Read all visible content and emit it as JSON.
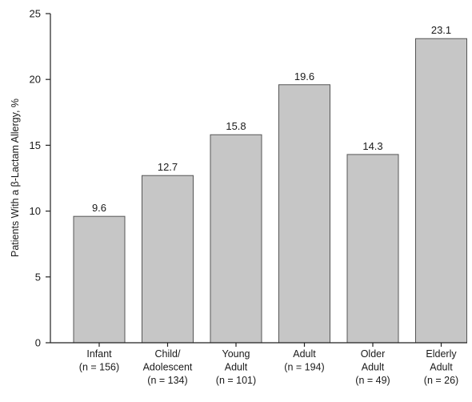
{
  "chart_data": {
    "type": "bar",
    "title": "",
    "xlabel": "",
    "ylabel": "Patients With a β-Lactam Allergy, %",
    "ylim": [
      0,
      25
    ],
    "yticks": [
      0,
      5,
      10,
      15,
      20,
      25
    ],
    "grid": false,
    "categories": [
      [
        "Infant",
        "(n = 156)"
      ],
      [
        "Child/",
        "Adolescent",
        "(n = 134)"
      ],
      [
        "Young",
        "Adult",
        "(n = 101)"
      ],
      [
        "Adult",
        "(n = 194)"
      ],
      [
        "Older",
        "Adult",
        "(n = 49)"
      ],
      [
        "Elderly",
        "Adult",
        "(n = 26)"
      ]
    ],
    "values": [
      9.6,
      12.7,
      15.8,
      19.6,
      14.3,
      23.1
    ],
    "data_labels": [
      "9.6",
      "12.7",
      "15.8",
      "19.6",
      "14.3",
      "23.1"
    ],
    "bar_color": "#c6c6c6",
    "bar_edge_color": "#555555"
  }
}
